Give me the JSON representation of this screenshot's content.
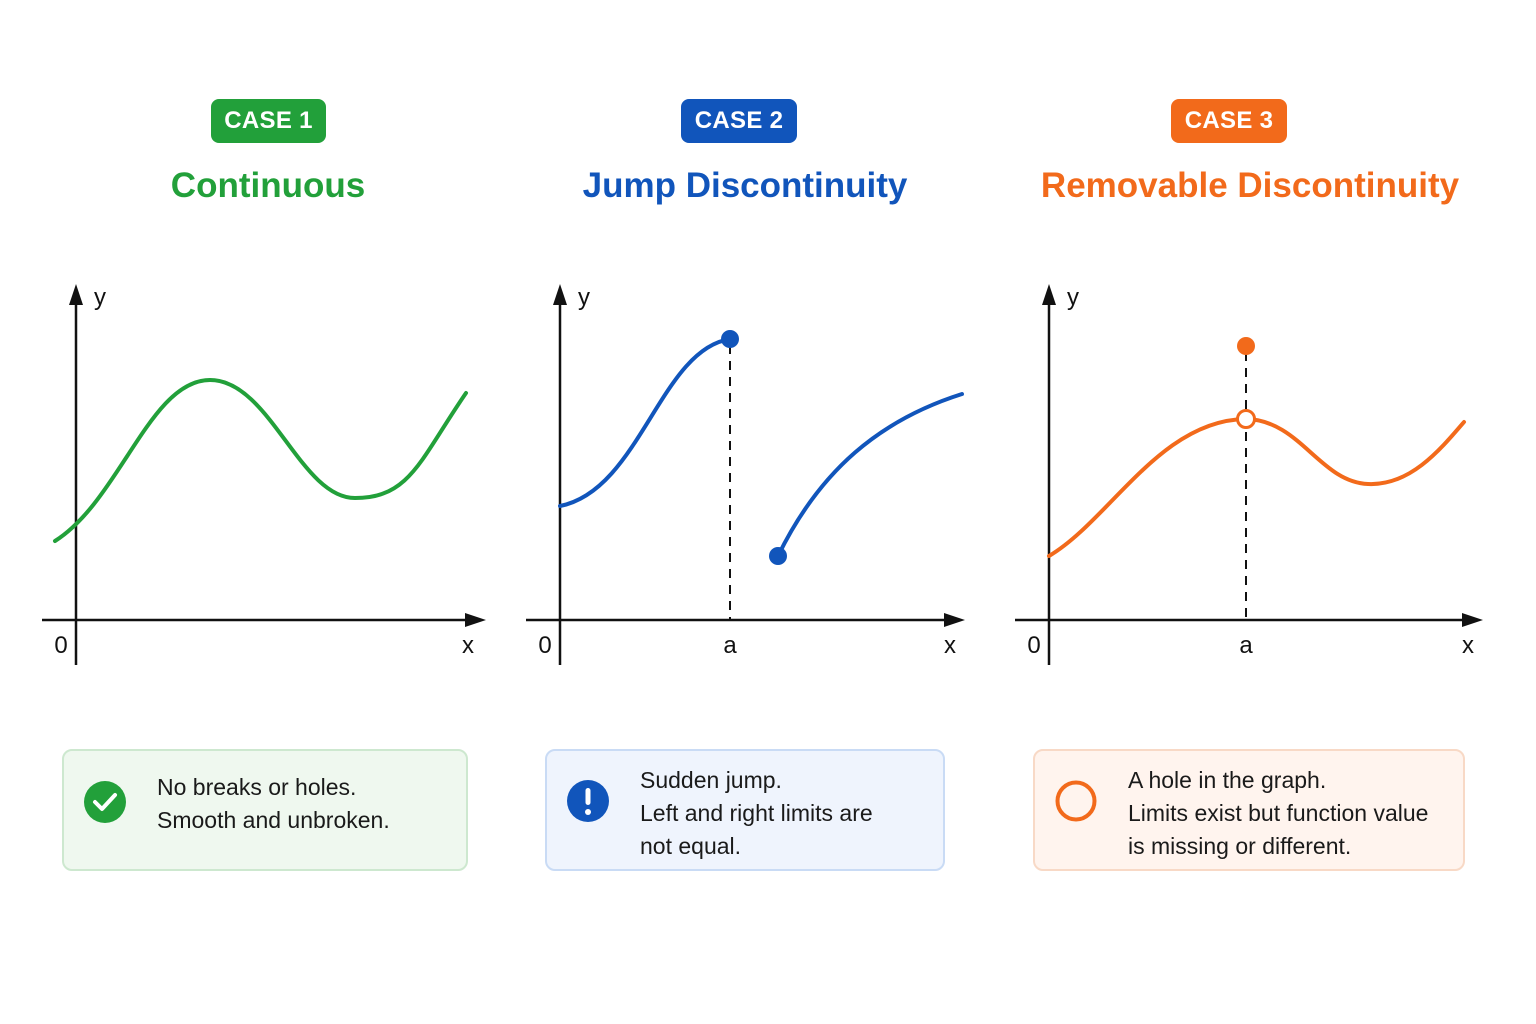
{
  "cases": [
    {
      "badge": "CASE 1",
      "title": "Continuous",
      "color": "#22a03a",
      "axis": {
        "origin": "0",
        "x": "x",
        "y": "y"
      },
      "note": {
        "icon": "check-circle-icon",
        "lines": [
          "No breaks or holes.",
          "Smooth and unbroken."
        ]
      }
    },
    {
      "badge": "CASE 2",
      "title": "Jump Discontinuity",
      "color": "#1155bb",
      "axis": {
        "origin": "0",
        "x": "x",
        "y": "y",
        "point": "a"
      },
      "note": {
        "icon": "exclamation-circle-icon",
        "lines": [
          "Sudden jump.",
          "Left and right limits are",
          "not equal."
        ]
      }
    },
    {
      "badge": "CASE 3",
      "title": "Removable Discontinuity",
      "color": "#f26a1b",
      "axis": {
        "origin": "0",
        "x": "x",
        "y": "y",
        "point": "a"
      },
      "note": {
        "icon": "open-circle-icon",
        "lines": [
          "A hole in the graph.",
          "Limits exist but function value",
          "is missing or different."
        ]
      }
    }
  ]
}
